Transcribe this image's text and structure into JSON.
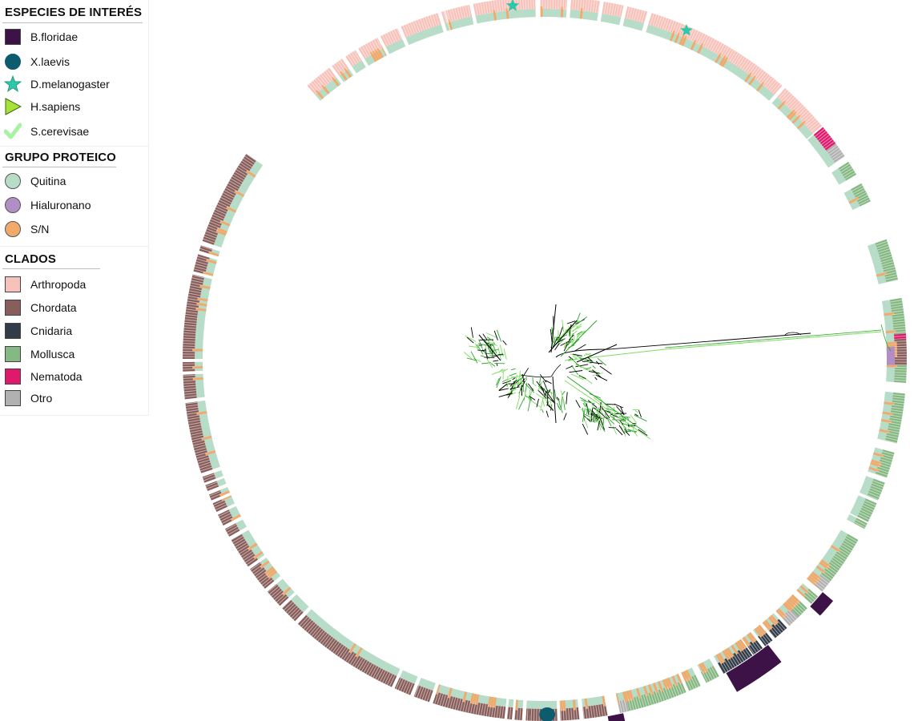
{
  "legend": {
    "species": {
      "title": "ESPECIES DE INTERÉS",
      "items": [
        {
          "label": "B.floridae",
          "icon": "square-icon",
          "color": "#3d1246"
        },
        {
          "label": "X.laevis",
          "icon": "circle-icon",
          "color": "#0d5c6e"
        },
        {
          "label": "D.melanogaster",
          "icon": "star-icon",
          "color": "#2ec7a8"
        },
        {
          "label": "H.sapiens",
          "icon": "triangle-icon",
          "color": "#a6e23a"
        },
        {
          "label": "S.cerevisae",
          "icon": "check-icon",
          "color": "#a9f2a1"
        }
      ]
    },
    "protein_group": {
      "title": "GRUPO PROTEICO",
      "items": [
        {
          "label": "Quitina",
          "color": "#b7dcc8"
        },
        {
          "label": "Hialuronano",
          "color": "#b38dc6"
        },
        {
          "label": "S/N",
          "color": "#f2aa6c"
        }
      ]
    },
    "clades": {
      "title": "CLADOS",
      "items": [
        {
          "label": "Arthropoda",
          "color": "#f7c2ba"
        },
        {
          "label": "Chordata",
          "color": "#885d5a"
        },
        {
          "label": "Cnidaria",
          "color": "#323c48"
        },
        {
          "label": "Mollusca",
          "color": "#86b884"
        },
        {
          "label": "Nematoda",
          "color": "#e0196d"
        },
        {
          "label": "Otro",
          "color": "#b1b1b1"
        }
      ]
    }
  },
  "tree": {
    "branch_colors": [
      "#000000",
      "#2aa52a",
      "#7ddd5d"
    ],
    "ring_segments": [
      {
        "from_deg": 254,
        "to_deg": 258,
        "clade": "Arthropoda"
      },
      {
        "from_deg": 258.6,
        "to_deg": 268.5,
        "clade": "Arthropoda"
      },
      {
        "from_deg": 269.3,
        "to_deg": 273.6,
        "clade": "Arthropoda"
      },
      {
        "from_deg": 274.2,
        "to_deg": 278.8,
        "clade": "Arthropoda"
      },
      {
        "from_deg": 279.4,
        "to_deg": 282.6,
        "clade": "Arthropoda"
      },
      {
        "from_deg": 283.2,
        "to_deg": 286.5,
        "clade": "Arthropoda"
      },
      {
        "from_deg": 287.2,
        "to_deg": 311,
        "clade": "Arthropoda"
      },
      {
        "from_deg": 311.6,
        "to_deg": 320,
        "clade": "Arthropoda"
      },
      {
        "from_deg": 320.2,
        "to_deg": 323.5,
        "clade": "Nematoda"
      },
      {
        "from_deg": 323.5,
        "to_deg": 326,
        "clade": "Otro"
      },
      {
        "from_deg": 327,
        "to_deg": 329.4,
        "clade": "Mollusca"
      },
      {
        "from_deg": 331,
        "to_deg": 334.2,
        "clade": "Mollusca"
      },
      {
        "from_deg": 340.7,
        "to_deg": 347.4,
        "clade": "Mollusca"
      },
      {
        "from_deg": 350.3,
        "to_deg": 356,
        "clade": "Mollusca"
      },
      {
        "from_deg": 356,
        "to_deg": 356.8,
        "clade": "Nematoda"
      },
      {
        "from_deg": 356.8,
        "to_deg": 361,
        "clade": "Chordata"
      },
      {
        "from_deg": 361,
        "to_deg": 363.8,
        "clade": "Mollusca"
      },
      {
        "from_deg": 365.5,
        "to_deg": 373.5,
        "clade": "Mollusca"
      },
      {
        "from_deg": 375,
        "to_deg": 379.2,
        "clade": "Mollusca"
      },
      {
        "from_deg": 380,
        "to_deg": 383,
        "clade": "Mollusca"
      },
      {
        "from_deg": 383.5,
        "to_deg": 386.8,
        "clade": "Mollusca"
      },
      {
        "from_deg": 387,
        "to_deg": 388,
        "clade": "Mollusca"
      },
      {
        "from_deg": 390,
        "to_deg": 398,
        "clade": "Mollusca"
      },
      {
        "from_deg": 398,
        "to_deg": 400,
        "clade": "Otro"
      },
      {
        "from_deg": 401,
        "to_deg": 402.6,
        "clade": "Mollusca"
      },
      {
        "from_deg": 403.5,
        "to_deg": 405.5,
        "clade": "Mollusca"
      },
      {
        "from_deg": 405.5,
        "to_deg": 407.5,
        "clade": "Otro"
      },
      {
        "from_deg": 408,
        "to_deg": 410.5,
        "clade": "Cnidaria"
      },
      {
        "from_deg": 411,
        "to_deg": 412.5,
        "clade": "Cnidaria"
      },
      {
        "from_deg": 413,
        "to_deg": 414.8,
        "clade": "Cnidaria"
      },
      {
        "from_deg": 415,
        "to_deg": 420.4,
        "clade": "Cnidaria"
      },
      {
        "from_deg": 421.2,
        "to_deg": 423.5,
        "clade": "Mollusca"
      },
      {
        "from_deg": 424.5,
        "to_deg": 426.5,
        "clade": "Mollusca"
      },
      {
        "from_deg": 427,
        "to_deg": 436.5,
        "clade": "Mollusca"
      },
      {
        "from_deg": 436.5,
        "to_deg": 438,
        "clade": "Otro"
      },
      {
        "from_deg": 440,
        "to_deg": 443.8,
        "clade": "Chordata"
      },
      {
        "from_deg": 444.5,
        "to_deg": 447.5,
        "clade": "Chordata"
      },
      {
        "from_deg": 448,
        "to_deg": 452.4,
        "clade": "Chordata"
      },
      {
        "from_deg": 452.4,
        "to_deg": 453,
        "clade": "Chordata"
      },
      {
        "from_deg": 453.6,
        "to_deg": 454.8,
        "clade": "Chordata"
      },
      {
        "from_deg": 455.2,
        "to_deg": 456,
        "clade": "Chordata"
      },
      {
        "from_deg": 456.4,
        "to_deg": 468,
        "clade": "Chordata"
      },
      {
        "from_deg": 468.6,
        "to_deg": 471.2,
        "clade": "Chordata"
      },
      {
        "from_deg": 471.8,
        "to_deg": 474.5,
        "clade": "Chordata"
      },
      {
        "from_deg": 475,
        "to_deg": 493,
        "clade": "Chordata"
      },
      {
        "from_deg": 493.6,
        "to_deg": 496.5,
        "clade": "Chordata"
      },
      {
        "from_deg": 497,
        "to_deg": 500,
        "clade": "Chordata"
      },
      {
        "from_deg": 500.6,
        "to_deg": 504.5,
        "clade": "Chordata"
      },
      {
        "from_deg": 505,
        "to_deg": 510,
        "clade": "Chordata"
      },
      {
        "from_deg": 510.6,
        "to_deg": 512,
        "clade": "Chordata"
      },
      {
        "from_deg": 512.6,
        "to_deg": 514.5,
        "clade": "Chordata"
      },
      {
        "from_deg": 515,
        "to_deg": 516.5,
        "clade": "Chordata"
      },
      {
        "from_deg": 517,
        "to_deg": 518,
        "clade": "Chordata"
      },
      {
        "from_deg": 518.6,
        "to_deg": 519.6,
        "clade": "Chordata"
      },
      {
        "from_deg": 520,
        "to_deg": 521,
        "clade": "Chordata"
      },
      {
        "from_deg": 521.6,
        "to_deg": 533,
        "clade": "Chordata"
      },
      {
        "from_deg": 533.6,
        "to_deg": 537.5,
        "clade": "Chordata"
      },
      {
        "from_deg": 538,
        "to_deg": 539.5,
        "clade": "Chordata"
      },
      {
        "from_deg": 540,
        "to_deg": 553.5,
        "clade": "Chordata"
      },
      {
        "from_deg": 554,
        "to_deg": 556.8,
        "clade": "Chordata"
      },
      {
        "from_deg": 557.4,
        "to_deg": 558.3,
        "clade": "Chordata"
      },
      {
        "from_deg": 559,
        "to_deg": 574.5,
        "clade": "Chordata"
      },
      {
        "from_deg": 589,
        "to_deg": 593.5,
        "clade": "Arthropoda"
      },
      {
        "from_deg": 594,
        "to_deg": 596,
        "clade": "Arthropoda"
      },
      {
        "from_deg": 596.6,
        "to_deg": 598.5,
        "clade": "Arthropoda"
      },
      {
        "from_deg": 599,
        "to_deg": 602.5,
        "clade": "Arthropoda"
      },
      {
        "from_deg": 603,
        "to_deg": 606,
        "clade": "Arthropoda"
      },
      {
        "from_deg": 606.6,
        "to_deg": 612.8,
        "clade": "Arthropoda"
      },
      {
        "from_deg": 613.4,
        "to_deg": 613.9,
        "clade": "Arthropoda"
      }
    ]
  }
}
